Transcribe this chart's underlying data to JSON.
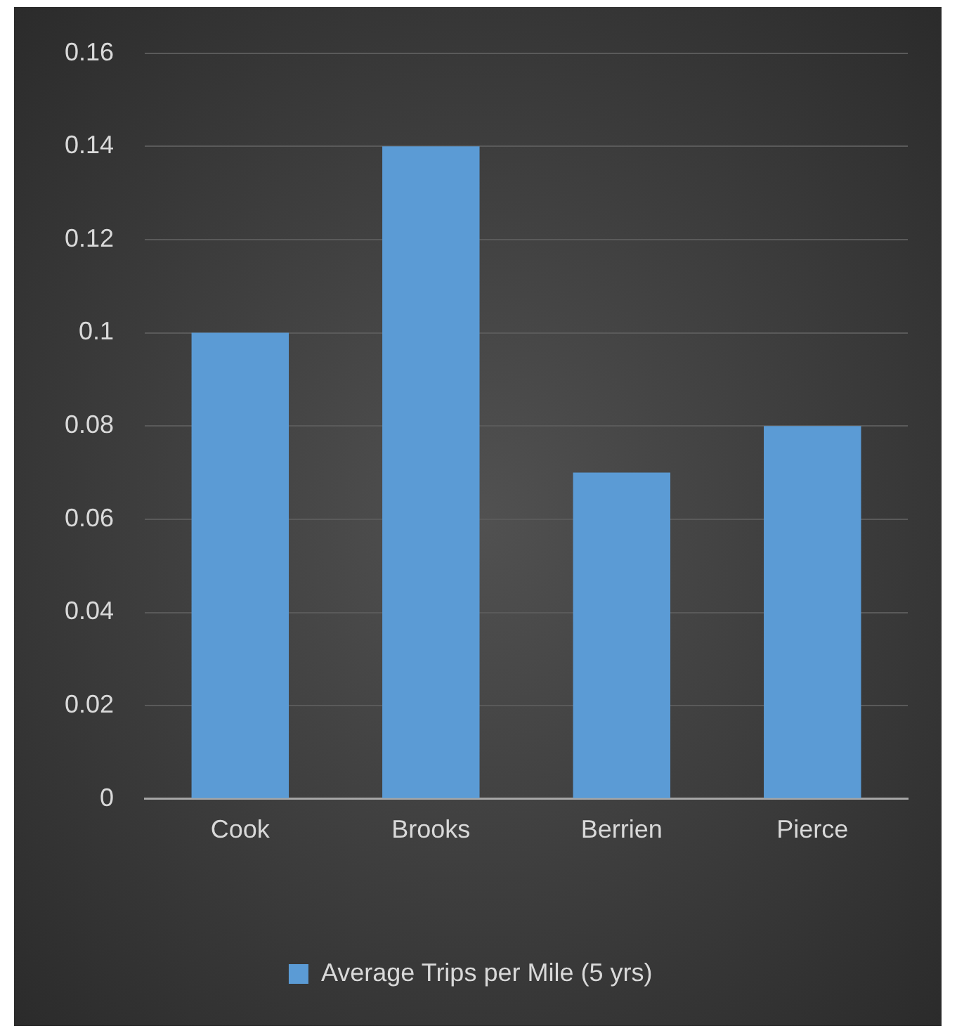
{
  "chart_data": {
    "type": "bar",
    "categories": [
      "Cook",
      "Brooks",
      "Berrien",
      "Pierce"
    ],
    "series": [
      {
        "name": "Average Trips per Mile (5 yrs)",
        "color": "#5b9bd5",
        "values": [
          0.1,
          0.14,
          0.07,
          0.08
        ]
      }
    ],
    "ylim": [
      0,
      0.16
    ],
    "yticks": [
      0,
      0.02,
      0.04,
      0.06,
      0.08,
      0.1,
      0.12,
      0.14,
      0.16
    ],
    "grid": "y",
    "legend": "bottom"
  }
}
